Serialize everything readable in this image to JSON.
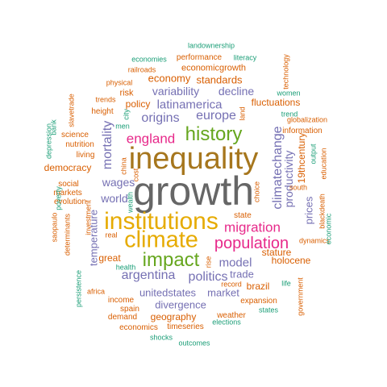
{
  "palette": {
    "green": "#1b9e77",
    "orange": "#d95f02",
    "purple": "#7570b3",
    "magenta": "#e7298a",
    "lime": "#66a61e",
    "gold": "#e6ab02",
    "brown": "#a6761d",
    "gray": "#666666"
  },
  "words": [
    {
      "text": "growth",
      "color": "gray"
    },
    {
      "text": "inequality",
      "color": "brown"
    },
    {
      "text": "institutions",
      "color": "gold"
    },
    {
      "text": "climate",
      "color": "gold"
    },
    {
      "text": "history",
      "color": "lime"
    },
    {
      "text": "impact",
      "color": "lime"
    },
    {
      "text": "population",
      "color": "magenta"
    },
    {
      "text": "migration",
      "color": "magenta"
    },
    {
      "text": "england",
      "color": "magenta"
    },
    {
      "text": "climatechange",
      "color": "purple"
    },
    {
      "text": "europe",
      "color": "purple"
    },
    {
      "text": "origins",
      "color": "purple"
    },
    {
      "text": "mortality",
      "color": "purple"
    },
    {
      "text": "politics",
      "color": "purple"
    },
    {
      "text": "argentina",
      "color": "purple"
    },
    {
      "text": "model",
      "color": "purple"
    },
    {
      "text": "latinamerica",
      "color": "purple"
    },
    {
      "text": "variability",
      "color": "purple"
    },
    {
      "text": "decline",
      "color": "purple"
    },
    {
      "text": "productivity",
      "color": "purple"
    },
    {
      "text": "trade",
      "color": "purple"
    },
    {
      "text": "wages",
      "color": "purple"
    },
    {
      "text": "world",
      "color": "purple"
    },
    {
      "text": "temperature",
      "color": "purple"
    },
    {
      "text": "unitedstates",
      "color": "purple"
    },
    {
      "text": "market",
      "color": "purple"
    },
    {
      "text": "divergence",
      "color": "purple"
    },
    {
      "text": "prices",
      "color": "purple"
    },
    {
      "text": "economy",
      "color": "orange"
    },
    {
      "text": "standards",
      "color": "orange"
    },
    {
      "text": "policy",
      "color": "orange"
    },
    {
      "text": "fluctuations",
      "color": "orange"
    },
    {
      "text": "democracy",
      "color": "orange"
    },
    {
      "text": "stature",
      "color": "orange"
    },
    {
      "text": "holocene",
      "color": "orange"
    },
    {
      "text": "brazil",
      "color": "orange"
    },
    {
      "text": "geography",
      "color": "orange"
    },
    {
      "text": "great",
      "color": "orange"
    },
    {
      "text": "19thcentury",
      "color": "orange"
    },
    {
      "text": "economicgrowth",
      "color": "orange"
    },
    {
      "text": "performance",
      "color": "orange"
    },
    {
      "text": "information",
      "color": "orange"
    },
    {
      "text": "risk",
      "color": "orange"
    },
    {
      "text": "height",
      "color": "orange"
    },
    {
      "text": "social",
      "color": "orange"
    },
    {
      "text": "markets",
      "color": "orange"
    },
    {
      "text": "evolution",
      "color": "orange"
    },
    {
      "text": "living",
      "color": "orange"
    },
    {
      "text": "nutrition",
      "color": "orange"
    },
    {
      "text": "science",
      "color": "orange"
    },
    {
      "text": "railroads",
      "color": "orange"
    },
    {
      "text": "physical",
      "color": "orange"
    },
    {
      "text": "trends",
      "color": "orange"
    },
    {
      "text": "income",
      "color": "orange"
    },
    {
      "text": "demand",
      "color": "orange"
    },
    {
      "text": "economics",
      "color": "orange"
    },
    {
      "text": "timeseries",
      "color": "orange"
    },
    {
      "text": "spain",
      "color": "orange"
    },
    {
      "text": "expansion",
      "color": "orange"
    },
    {
      "text": "weather",
      "color": "orange"
    },
    {
      "text": "state",
      "color": "orange"
    },
    {
      "text": "south",
      "color": "orange"
    },
    {
      "text": "dynamics",
      "color": "orange"
    },
    {
      "text": "globalization",
      "color": "orange"
    },
    {
      "text": "record",
      "color": "orange"
    },
    {
      "text": "real",
      "color": "orange"
    },
    {
      "text": "africa",
      "color": "orange"
    },
    {
      "text": "investment",
      "color": "orange"
    },
    {
      "text": "cost",
      "color": "orange"
    },
    {
      "text": "slavetrade",
      "color": "orange"
    },
    {
      "text": "saopaulo",
      "color": "orange"
    },
    {
      "text": "determinants",
      "color": "orange"
    },
    {
      "text": "choice",
      "color": "orange"
    },
    {
      "text": "rise",
      "color": "orange"
    },
    {
      "text": "land",
      "color": "orange"
    },
    {
      "text": "blackdeath",
      "color": "orange"
    },
    {
      "text": "government",
      "color": "orange"
    },
    {
      "text": "education",
      "color": "orange"
    },
    {
      "text": "technology",
      "color": "orange"
    },
    {
      "text": "china",
      "color": "orange"
    },
    {
      "text": "landownership",
      "color": "green"
    },
    {
      "text": "economies",
      "color": "green"
    },
    {
      "text": "literacy",
      "color": "green"
    },
    {
      "text": "women",
      "color": "green"
    },
    {
      "text": "trend",
      "color": "green"
    },
    {
      "text": "men",
      "color": "green"
    },
    {
      "text": "health",
      "color": "green"
    },
    {
      "text": "elections",
      "color": "green"
    },
    {
      "text": "states",
      "color": "green"
    },
    {
      "text": "shocks",
      "color": "green"
    },
    {
      "text": "outcomes",
      "color": "green"
    },
    {
      "text": "life",
      "color": "green"
    },
    {
      "text": "bank",
      "color": "green"
    },
    {
      "text": "depression",
      "color": "green"
    },
    {
      "text": "poverty",
      "color": "green"
    },
    {
      "text": "persistence",
      "color": "green"
    },
    {
      "text": "city",
      "color": "green"
    },
    {
      "text": "wealth",
      "color": "green"
    },
    {
      "text": "output",
      "color": "green"
    },
    {
      "text": "economic",
      "color": "green"
    }
  ]
}
